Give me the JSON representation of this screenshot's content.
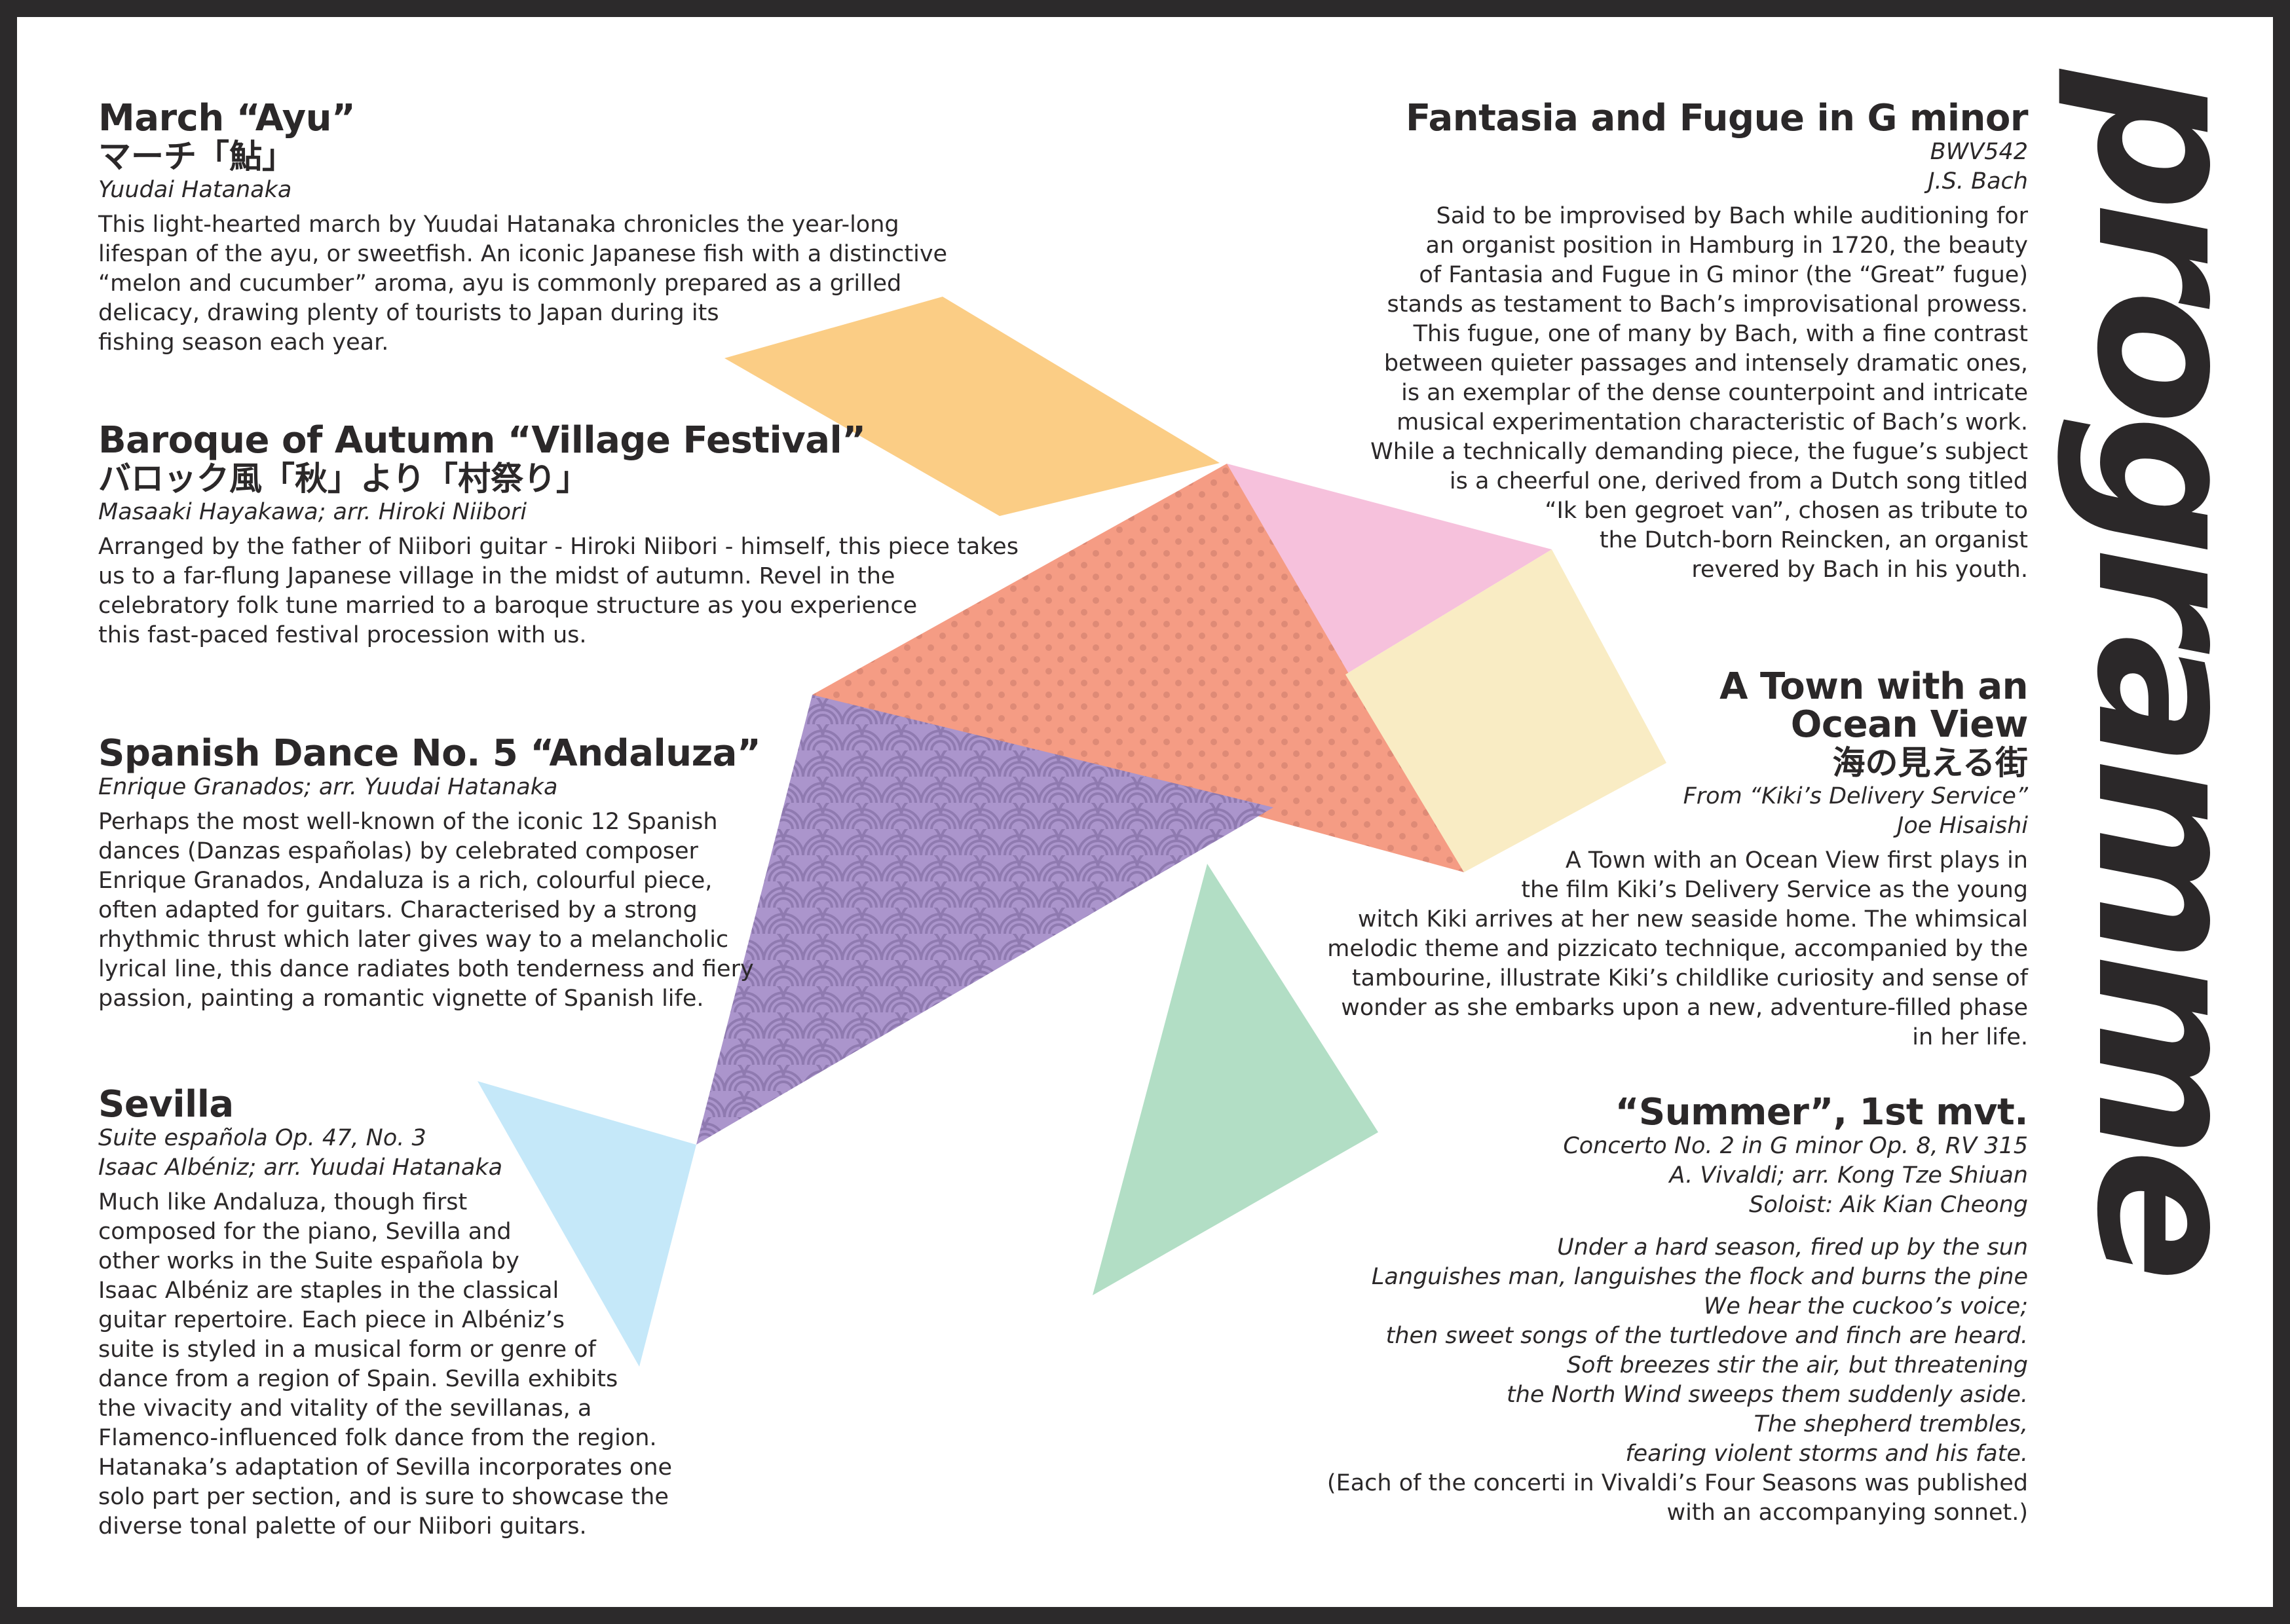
{
  "colors": {
    "frame": "#2c2a2b",
    "paper": "#ffffff",
    "text": "#2b2829",
    "orange": "#fbcd85",
    "pink": "#f6c1dc",
    "salmon": "#f59c84",
    "salmon_dot": "#de8a76",
    "cream": "#f9ecc4",
    "purple": "#ab95cc",
    "purple_line": "#8f7ab0",
    "light_blue": "#c5e8f9",
    "green": "#b2dec5"
  },
  "brand": {
    "word": "programme"
  },
  "pieces": {
    "ayu": {
      "title": "March “Ayu”",
      "title_jp": "マーチ「鮎」",
      "composer": "Yuudai Hatanaka",
      "body": [
        "This light-hearted march by Yuudai Hatanaka chronicles the year-long",
        "lifespan of the ayu, or sweetfish. An iconic Japanese fish with a distinctive",
        "“melon and cucumber” aroma, ayu is commonly prepared as a grilled",
        "delicacy, drawing plenty of tourists to Japan during its",
        "fishing season each year."
      ]
    },
    "baroque": {
      "title": "Baroque of Autumn “Village Festival”",
      "title_jp": "バロック風「秋」より「村祭り」",
      "composer": "Masaaki Hayakawa; arr. Hiroki Niibori",
      "body": [
        "Arranged by the father of Niibori guitar - Hiroki Niibori - himself, this piece takes",
        "us to a far-flung Japanese village in the midst of autumn. Revel in the",
        "celebratory folk tune married to a baroque structure as you experience",
        "this fast-paced festival procession with us."
      ]
    },
    "andaluza": {
      "title": "Spanish Dance No. 5 “Andaluza”",
      "composer": "Enrique Granados; arr. Yuudai Hatanaka",
      "body": [
        "Perhaps the most well-known of the iconic 12 Spanish",
        "dances (Danzas españolas) by celebrated composer",
        "Enrique Granados, Andaluza is a rich, colourful piece,",
        "often adapted for guitars. Characterised by a strong",
        "rhythmic thrust which later gives way to a melancholic",
        "lyrical line, this dance radiates both tenderness and fiery",
        "passion, painting a romantic vignette of Spanish life."
      ]
    },
    "sevilla": {
      "title": "Sevilla",
      "work": "Suite española Op. 47, No. 3",
      "composer": "Isaac Albéniz; arr. Yuudai Hatanaka",
      "body": [
        "Much like Andaluza, though first",
        "composed for the piano, Sevilla and",
        "other works in the Suite española by",
        "Isaac Albéniz are staples in the classical",
        "guitar repertoire. Each piece in Albéniz’s",
        "suite is styled in a musical form or genre of",
        "dance from a region of Spain. Sevilla exhibits",
        "the vivacity and vitality of the sevillanas, a",
        "Flamenco-influenced folk dance from the region.",
        "Hatanaka’s adaptation of Sevilla incorporates one",
        "solo part per section, and is sure to showcase the",
        "diverse tonal palette of our Niibori guitars."
      ]
    },
    "fantasia": {
      "title": "Fantasia and Fugue in G minor",
      "catalogue": "BWV542",
      "composer": "J.S. Bach",
      "body": [
        "Said to be improvised by Bach while auditioning for",
        "an organist position in Hamburg in 1720, the beauty",
        "of Fantasia and Fugue in G minor (the “Great” fugue)",
        "stands as testament to Bach’s improvisational prowess.",
        "This fugue, one of many by Bach, with a fine contrast",
        "between quieter passages and intensely dramatic ones,",
        "is an exemplar of the dense counterpoint and intricate",
        "musical experimentation characteristic of Bach’s work.",
        "While a technically demanding piece, the fugue’s subject",
        "is a cheerful one, derived from a Dutch song titled",
        "“Ik ben gegroet van”, chosen as tribute to",
        "the Dutch-born Reincken, an organist",
        "revered by Bach in his youth."
      ]
    },
    "town": {
      "title_line1": "A Town with an",
      "title_line2": "Ocean View",
      "title_jp": "海の見える街",
      "source": "From “Kiki’s Delivery Service”",
      "composer": "Joe Hisaishi",
      "body": [
        "A Town with an Ocean View first plays in",
        "the film Kiki’s Delivery Service as the young",
        "witch Kiki arrives at her new seaside home. The whimsical",
        "melodic theme and pizzicato technique, accompanied by the",
        "tambourine, illustrate Kiki’s childlike curiosity and sense of",
        "wonder as she embarks upon a new, adventure-filled phase",
        "in her life."
      ]
    },
    "summer": {
      "title": "“Summer”, 1st mvt.",
      "work": "Concerto No. 2 in G minor Op. 8, RV 315",
      "composer": "A. Vivaldi; arr. Kong Tze Shiuan",
      "soloist": "Soloist: Aik Kian Cheong",
      "poem": [
        "Under a hard season, fired up by the sun",
        "Languishes man, languishes the flock and burns the pine",
        "We hear the cuckoo’s voice;",
        "then sweet songs of the turtledove and finch are heard.",
        "Soft breezes stir the air, but threatening",
        "the North Wind sweeps them suddenly aside.",
        "The shepherd trembles,",
        "fearing violent storms and his fate."
      ],
      "note": [
        "(Each of the concerti in Vivaldi’s Four Seasons was published",
        "with an accompanying sonnet.)"
      ]
    }
  }
}
